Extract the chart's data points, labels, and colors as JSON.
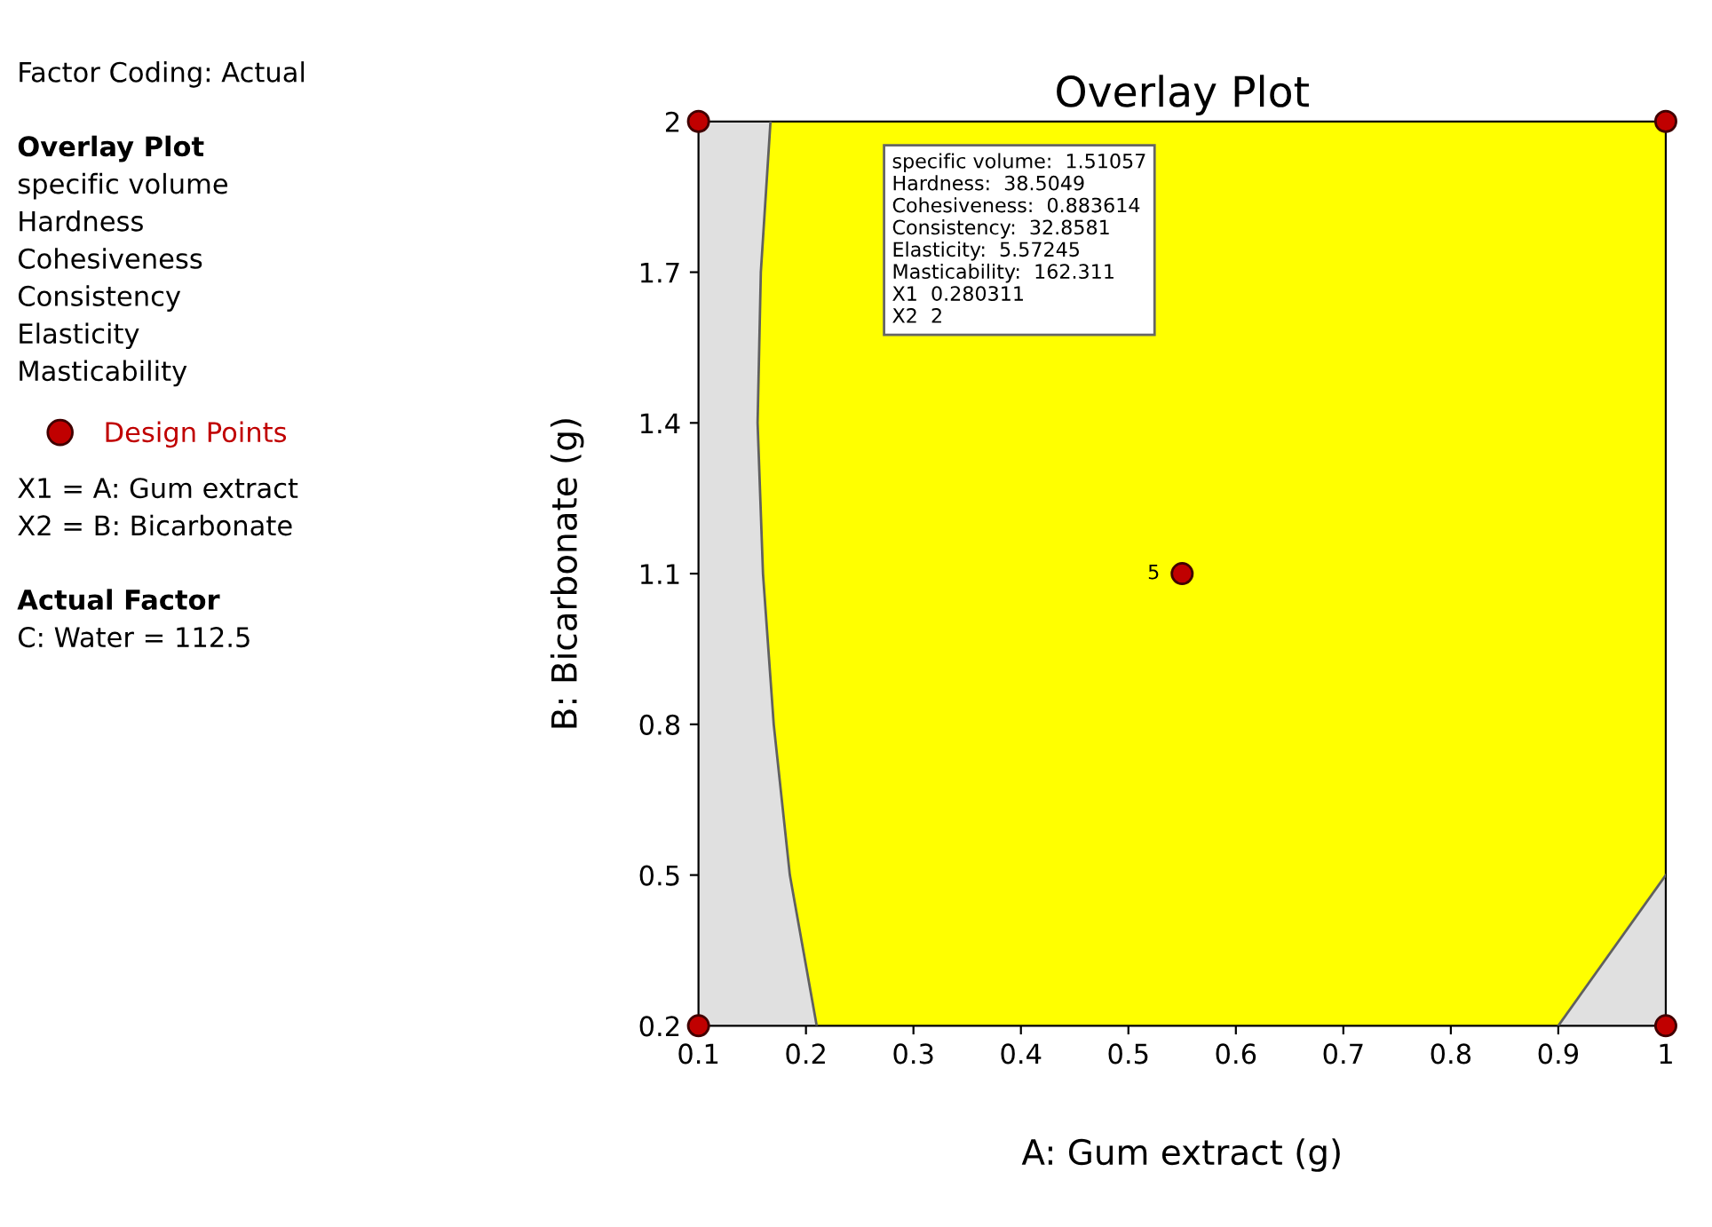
{
  "chart_data": {
    "type": "line",
    "title": "Overlay Plot",
    "xlabel": "A: Gum extract (g)",
    "ylabel": "B: Bicarbonate (g)",
    "xlim": [
      0.1,
      1
    ],
    "ylim": [
      0.2,
      2
    ],
    "xticks": [
      0.1,
      0.2,
      0.3,
      0.4,
      0.5,
      0.6,
      0.7,
      0.8,
      0.9,
      1
    ],
    "yticks": [
      0.2,
      0.5,
      0.8,
      1.1,
      1.4,
      1.7,
      2
    ],
    "grid": false,
    "legend": "left",
    "series": [
      {
        "type": "scatter",
        "name": "Design Points",
        "color": "#c00000",
        "x": [
          0.1,
          1,
          0.1,
          1,
          0.55
        ],
        "values": [
          2,
          2,
          0.2,
          0.2,
          1.1
        ]
      },
      {
        "color": "#606060",
        "x": [
          0.167,
          0.158,
          0.155,
          0.16,
          0.17,
          0.185,
          0.21
        ],
        "values": [
          2,
          1.7,
          1.4,
          1.1,
          0.8,
          0.5,
          0.2
        ]
      },
      {
        "color": "#606060",
        "x": [
          0.9,
          1
        ],
        "values": [
          0.2,
          0.5
        ]
      }
    ],
    "annotations": [
      "Factor Coding: Actual",
      "Overlay Plot",
      "specific volume",
      "Hardness",
      "Cohesiveness",
      "Consistency",
      "Elasticity",
      "Masticability",
      "X1 = A: Gum extract",
      "X2 = B: Bicarbonate",
      "Actual Factor",
      "C: Water = 112.5",
      {
        "text": "5",
        "x": 0.55,
        "y": 1.1
      },
      "specific volume:  1.51057\nHardness:  38.5049\nCohesiveness:  0.883614\nConsistency:  32.8581\nElasticity:  5.57245\nMasticability:  162.311\nX1  0.280311\nX2  2"
    ]
  }
}
